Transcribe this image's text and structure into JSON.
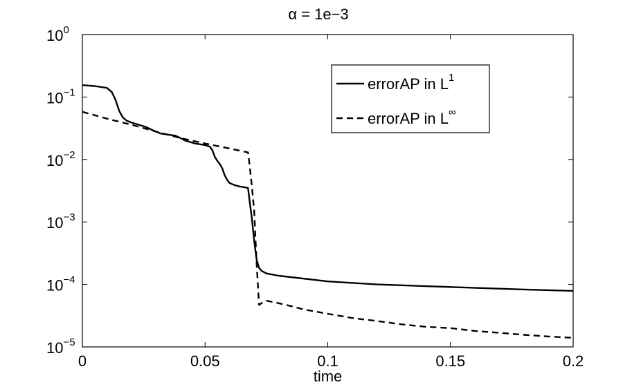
{
  "chart_data": {
    "type": "line",
    "title_symbol": "α",
    "title_rest": " = 1e−3",
    "xlabel": "time",
    "ylabel": "",
    "xlim": [
      0,
      0.2
    ],
    "ylim": [
      1e-05,
      1
    ],
    "yscale": "log",
    "grid": false,
    "legend_position": "top-right",
    "xticks": [
      {
        "value": 0,
        "label": "0"
      },
      {
        "value": 0.05,
        "label": "0.05"
      },
      {
        "value": 0.1,
        "label": "0.1"
      },
      {
        "value": 0.15,
        "label": "0.15"
      },
      {
        "value": 0.2,
        "label": "0.2"
      }
    ],
    "yticks": [
      {
        "value": 1,
        "base": "10",
        "exp": "0"
      },
      {
        "value": 0.1,
        "base": "10",
        "exp": "−1"
      },
      {
        "value": 0.01,
        "base": "10",
        "exp": "−2"
      },
      {
        "value": 0.001,
        "base": "10",
        "exp": "−3"
      },
      {
        "value": 0.0001,
        "base": "10",
        "exp": "−4"
      },
      {
        "value": 1e-05,
        "base": "10",
        "exp": "−5"
      }
    ],
    "series": [
      {
        "name_base": "errorAP in L",
        "name_sup": "1",
        "style": "solid",
        "color": "#000000",
        "x": [
          0,
          0.005,
          0.01,
          0.012,
          0.0135,
          0.015,
          0.0165,
          0.018,
          0.02,
          0.023,
          0.026,
          0.029,
          0.032,
          0.035,
          0.038,
          0.04,
          0.042,
          0.044,
          0.046,
          0.048,
          0.05,
          0.052,
          0.053,
          0.054,
          0.055,
          0.056,
          0.057,
          0.058,
          0.059,
          0.06,
          0.062,
          0.064,
          0.066,
          0.0675,
          0.068,
          0.069,
          0.07,
          0.071,
          0.072,
          0.073,
          0.075,
          0.08,
          0.1,
          0.12,
          0.15,
          0.18,
          0.2
        ],
        "y": [
          0.155,
          0.15,
          0.14,
          0.12,
          0.09,
          0.06,
          0.047,
          0.042,
          0.039,
          0.036,
          0.033,
          0.029,
          0.026,
          0.025,
          0.024,
          0.022,
          0.02,
          0.019,
          0.018,
          0.0175,
          0.017,
          0.016,
          0.014,
          0.011,
          0.0095,
          0.0085,
          0.0072,
          0.0056,
          0.0047,
          0.0042,
          0.0039,
          0.0037,
          0.0036,
          0.0035,
          0.0024,
          0.0012,
          0.0005,
          0.00025,
          0.000185,
          0.000165,
          0.00015,
          0.000138,
          0.000112,
          0.0001,
          9.1e-05,
          8.3e-05,
          7.9e-05
        ]
      },
      {
        "name_base": "errorAP in L",
        "name_sup": "∞",
        "style": "dashed",
        "color": "#000000",
        "x": [
          0,
          0.01,
          0.02,
          0.03,
          0.04,
          0.05,
          0.06,
          0.0675,
          0.068,
          0.069,
          0.07,
          0.0705,
          0.071,
          0.0715,
          0.072,
          0.073,
          0.074,
          0.075,
          0.076,
          0.078,
          0.08,
          0.085,
          0.09,
          0.1,
          0.11,
          0.12,
          0.13,
          0.14,
          0.15,
          0.16,
          0.17,
          0.18,
          0.19,
          0.2
        ],
        "y": [
          0.058,
          0.045,
          0.036,
          0.028,
          0.022,
          0.018,
          0.015,
          0.013,
          0.009,
          0.004,
          0.0015,
          0.0006,
          0.00022,
          0.0001,
          4.7e-05,
          5e-05,
          5.3e-05,
          5.5e-05,
          5.4e-05,
          5.2e-05,
          5e-05,
          4.5e-05,
          4e-05,
          3.4e-05,
          2.9e-05,
          2.6e-05,
          2.3e-05,
          2.1e-05,
          2e-05,
          1.8e-05,
          1.68e-05,
          1.56e-05,
          1.47e-05,
          1.4e-05
        ]
      }
    ]
  }
}
